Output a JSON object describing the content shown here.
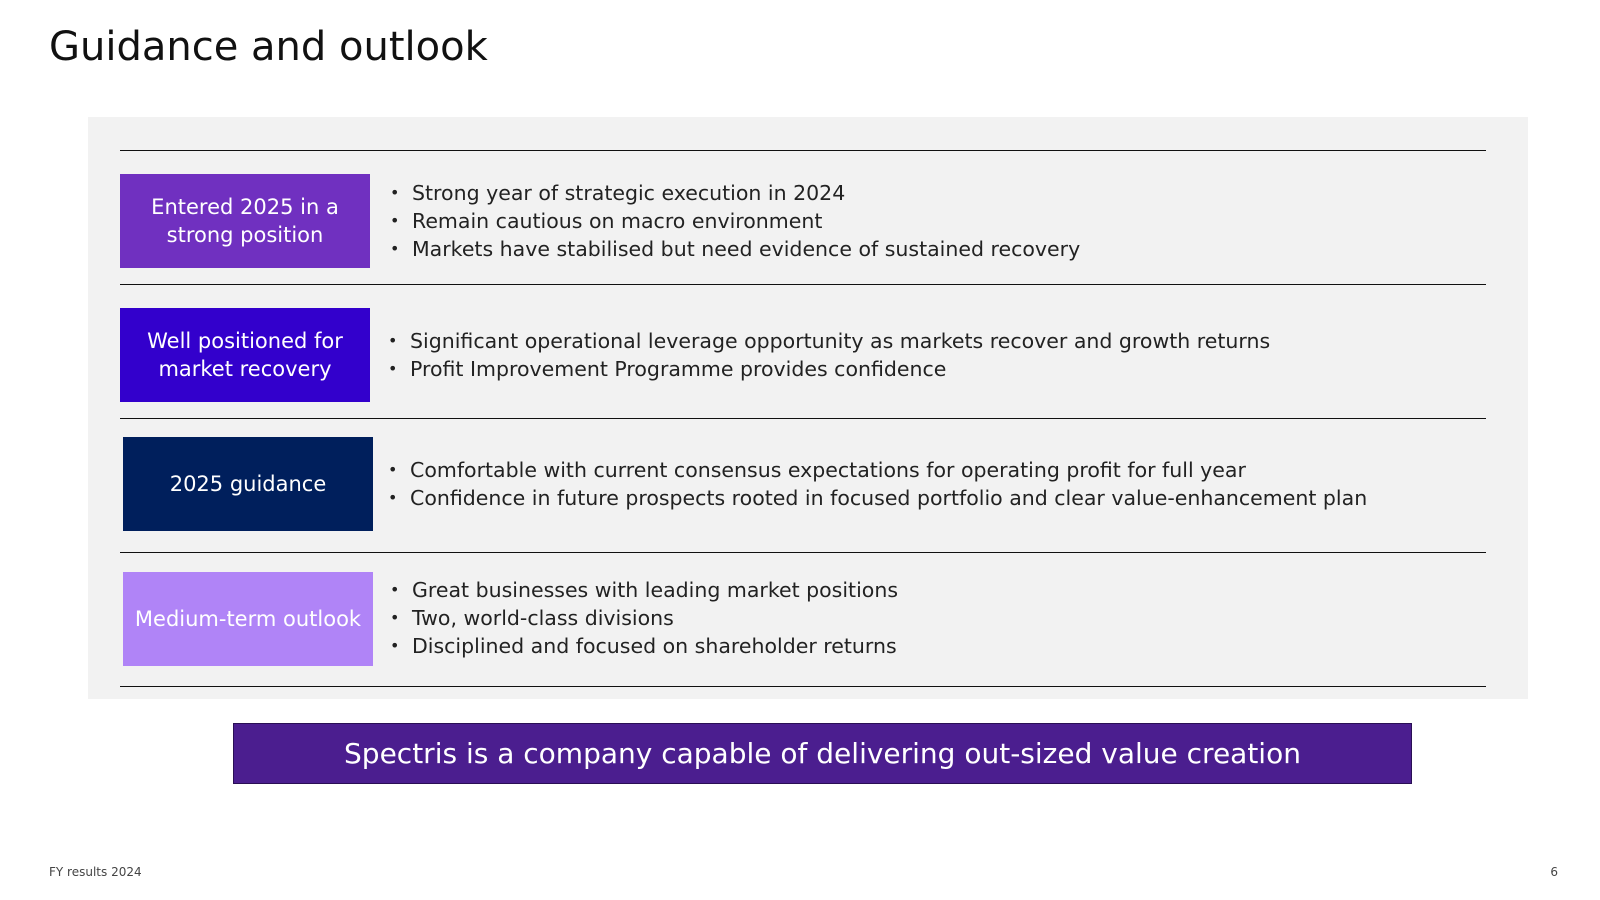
{
  "slide": {
    "title": "Guidance and outlook"
  },
  "rows": [
    {
      "label": "Entered 2025 in a strong position",
      "label_color": "#7030c0",
      "bullets": [
        "Strong year of strategic execution in 2024",
        "Remain cautious on macro environment",
        "Markets have stabilised but need evidence of sustained recovery"
      ]
    },
    {
      "label": "Well positioned for market recovery",
      "label_color": "#3300cc",
      "bullets": [
        "Significant operational leverage opportunity as markets recover and growth returns",
        "Profit Improvement Programme provides confidence"
      ]
    },
    {
      "label": "2025 guidance",
      "label_color": "#001f5c",
      "bullets": [
        "Comfortable with current consensus expectations for operating profit for full year",
        "Confidence in future prospects rooted in focused portfolio and clear value-enhancement plan"
      ]
    },
    {
      "label": "Medium-term outlook",
      "label_color": "#b084f7",
      "bullets": [
        "Great businesses with leading market positions",
        "Two, world-class divisions",
        "Disciplined and focused on shareholder returns"
      ]
    }
  ],
  "banner": {
    "text": "Spectris is a company capable of delivering out-sized value creation",
    "color": "#4b1e8f"
  },
  "footer": {
    "left": "FY results 2024",
    "page_number": "6"
  }
}
